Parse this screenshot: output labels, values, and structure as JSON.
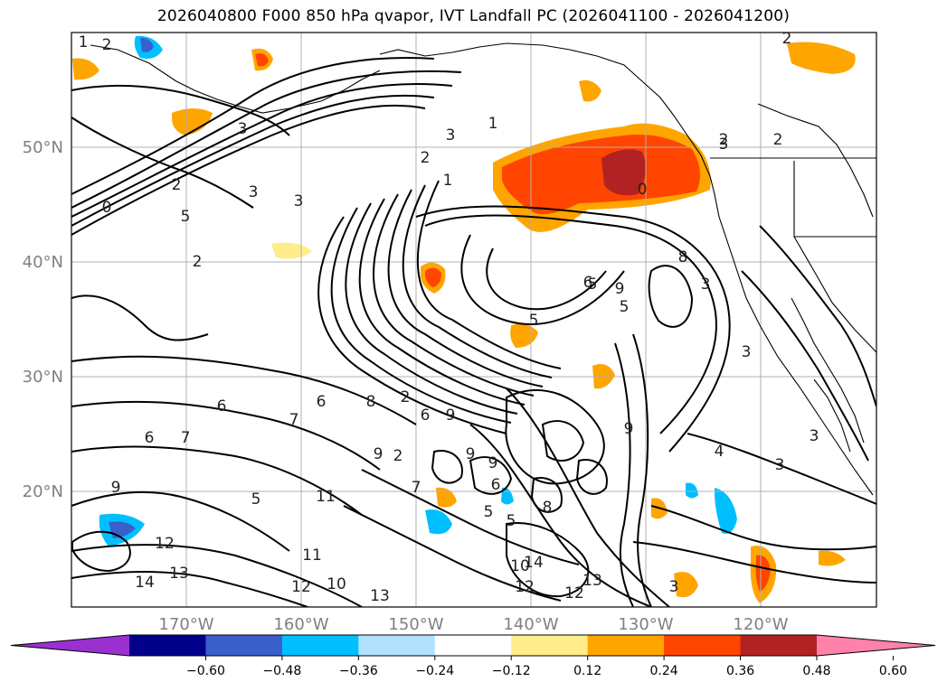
{
  "title": "2026040800 F000 850 hPa qvapor, IVT Landfall PC (2026041100 - 2026041200)",
  "lat_ticks": [
    {
      "label": "50°N",
      "lat": 50
    },
    {
      "label": "40°N",
      "lat": 40
    },
    {
      "label": "30°N",
      "lat": 30
    },
    {
      "label": "20°N",
      "lat": 20
    }
  ],
  "lon_ticks": [
    {
      "label": "170°W",
      "lon": -170
    },
    {
      "label": "160°W",
      "lon": -160
    },
    {
      "label": "150°W",
      "lon": -150
    },
    {
      "label": "140°W",
      "lon": -140
    },
    {
      "label": "130°W",
      "lon": -130
    },
    {
      "label": "120°W",
      "lon": -120
    }
  ],
  "colorbar": {
    "ticks": [
      "−0.60",
      "−0.48",
      "−0.36",
      "−0.24",
      "−0.12",
      "0.12",
      "0.24",
      "0.36",
      "0.48",
      "0.60"
    ],
    "colors": [
      "#9b30d0",
      "#00008b",
      "#3a5fcd",
      "#00bfff",
      "#b0e2ff",
      "#ffffff",
      "#ffec8b",
      "#ffa500",
      "#ff4500",
      "#b22222",
      "#ff82ab"
    ]
  },
  "contour_labels": [
    "1",
    "2",
    "3",
    "0",
    "2",
    "3",
    "5",
    "2",
    "2",
    "1",
    "3",
    "2",
    "0",
    "2",
    "1",
    "3",
    "5",
    "6",
    "8",
    "2",
    "6",
    "2",
    "7",
    "9",
    "7",
    "6",
    "9",
    "9",
    "6",
    "5",
    "5",
    "7",
    "9",
    "11",
    "12",
    "11",
    "12",
    "10",
    "13",
    "14",
    "13",
    "12",
    "14",
    "10",
    "13",
    "12",
    "3",
    "5",
    "4",
    "2",
    "3",
    "3",
    "8",
    "9",
    "3",
    "5",
    "3",
    "6",
    "6",
    "5",
    "8",
    "9",
    "9",
    "3"
  ]
}
